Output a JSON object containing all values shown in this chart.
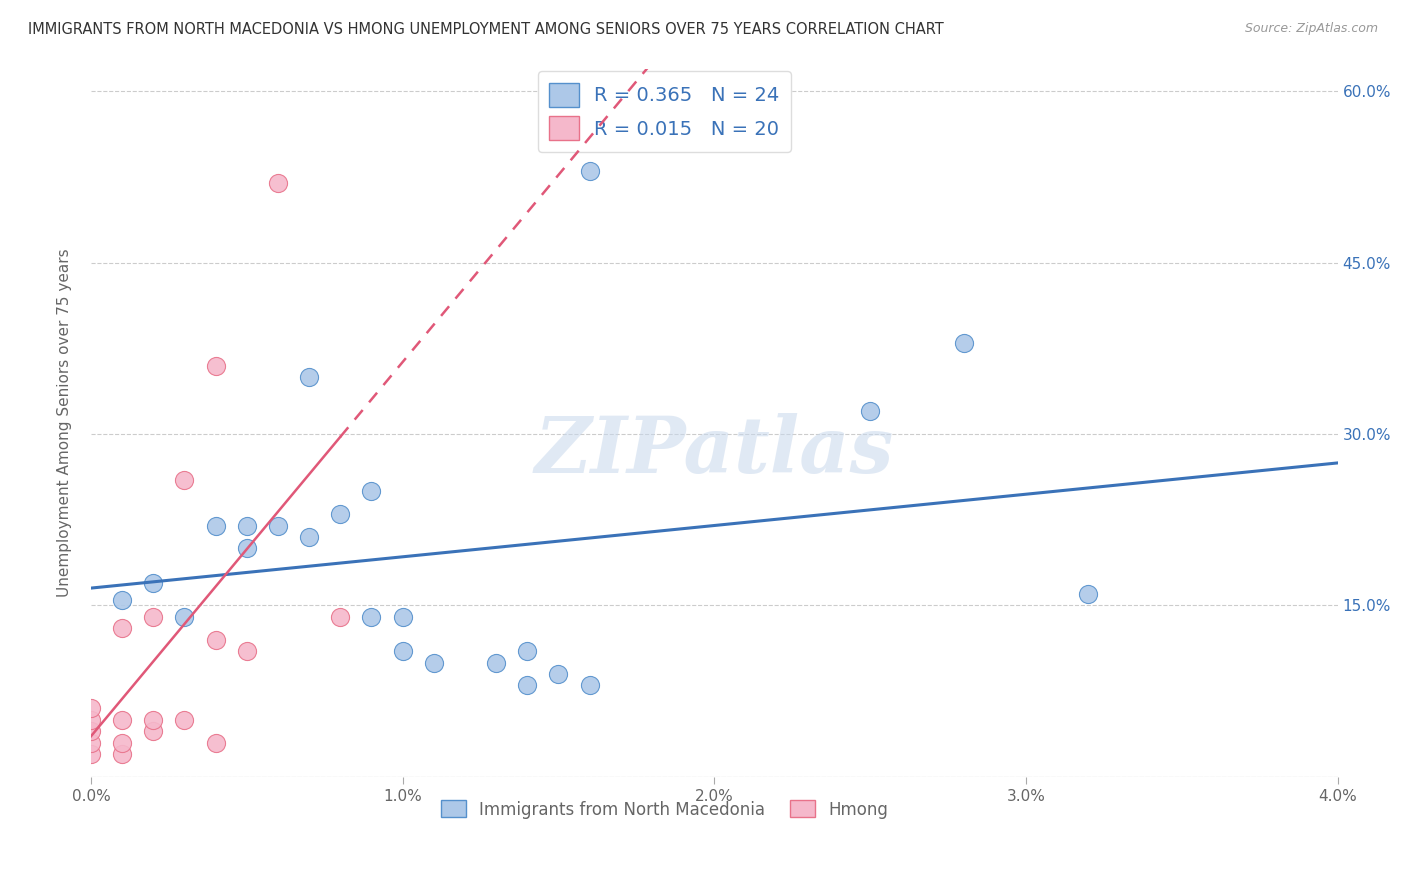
{
  "title": "IMMIGRANTS FROM NORTH MACEDONIA VS HMONG UNEMPLOYMENT AMONG SENIORS OVER 75 YEARS CORRELATION CHART",
  "source": "Source: ZipAtlas.com",
  "ylabel": "Unemployment Among Seniors over 75 years",
  "xlim": [
    0.0,
    0.04
  ],
  "ylim": [
    0.0,
    0.62
  ],
  "xticks": [
    0.0,
    0.01,
    0.02,
    0.03,
    0.04
  ],
  "xticklabels": [
    "0.0%",
    "1.0%",
    "2.0%",
    "3.0%",
    "4.0%"
  ],
  "yticks": [
    0.0,
    0.15,
    0.3,
    0.45,
    0.6
  ],
  "yticklabels_right": [
    "",
    "15.0%",
    "30.0%",
    "45.0%",
    "60.0%"
  ],
  "blue_R": 0.365,
  "blue_N": 24,
  "pink_R": 0.015,
  "pink_N": 20,
  "blue_label": "Immigrants from North Macedonia",
  "pink_label": "Hmong",
  "blue_color": "#adc8e8",
  "pink_color": "#f5b8cb",
  "blue_edge_color": "#5590cc",
  "pink_edge_color": "#e8728a",
  "blue_line_color": "#3a72b8",
  "pink_line_color": "#e05878",
  "legend_text_color": "#3a72b8",
  "title_color": "#333333",
  "watermark": "ZIPatlas",
  "blue_scatter_x": [
    0.001,
    0.002,
    0.003,
    0.004,
    0.005,
    0.005,
    0.006,
    0.007,
    0.007,
    0.008,
    0.009,
    0.009,
    0.01,
    0.01,
    0.011,
    0.013,
    0.014,
    0.014,
    0.015,
    0.016,
    0.016,
    0.025,
    0.028,
    0.032
  ],
  "blue_scatter_y": [
    0.155,
    0.17,
    0.14,
    0.22,
    0.22,
    0.2,
    0.22,
    0.21,
    0.35,
    0.23,
    0.25,
    0.14,
    0.14,
    0.11,
    0.1,
    0.1,
    0.11,
    0.08,
    0.09,
    0.08,
    0.53,
    0.32,
    0.38,
    0.16
  ],
  "pink_scatter_x": [
    0.0,
    0.0,
    0.0,
    0.0,
    0.0,
    0.001,
    0.001,
    0.001,
    0.001,
    0.002,
    0.002,
    0.002,
    0.003,
    0.003,
    0.004,
    0.004,
    0.004,
    0.005,
    0.006,
    0.008
  ],
  "pink_scatter_y": [
    0.02,
    0.03,
    0.04,
    0.05,
    0.06,
    0.02,
    0.03,
    0.05,
    0.13,
    0.04,
    0.05,
    0.14,
    0.05,
    0.26,
    0.03,
    0.12,
    0.36,
    0.11,
    0.52,
    0.14
  ],
  "background_color": "#ffffff",
  "grid_color": "#cccccc",
  "marker_size": 170
}
